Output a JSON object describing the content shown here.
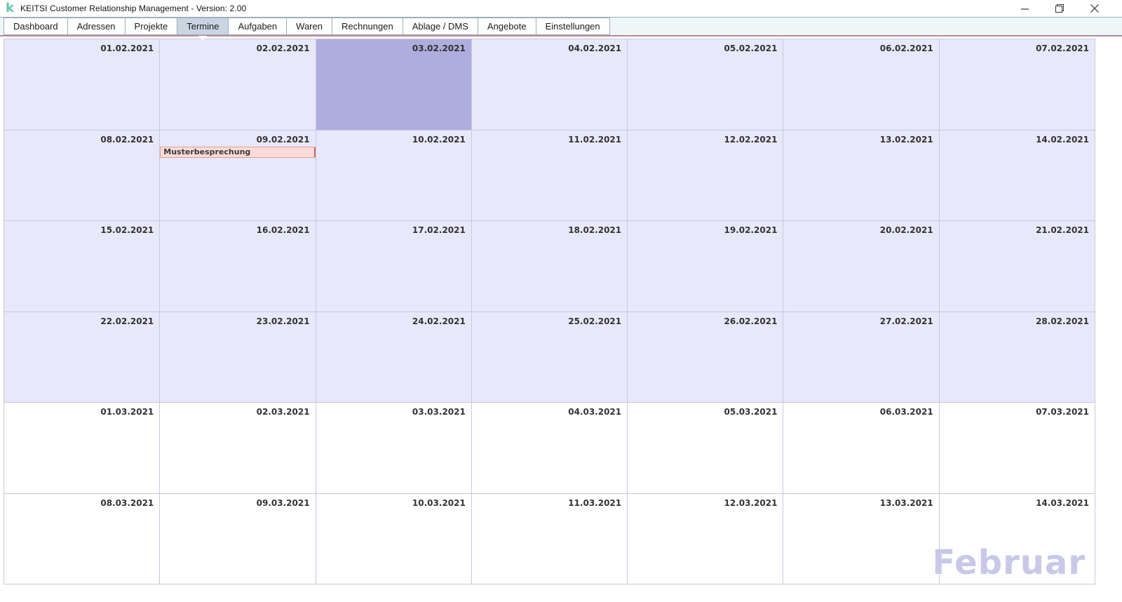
{
  "window": {
    "logo_letter": "k",
    "title": "KEITSI Customer Relationship Management - Version: 2.00",
    "controls": {
      "minimize_icon": "–",
      "restore_icon": "❐",
      "close_icon": "×"
    }
  },
  "tabs": [
    {
      "label": "Dashboard",
      "active": false
    },
    {
      "label": "Adressen",
      "active": false
    },
    {
      "label": "Projekte",
      "active": false
    },
    {
      "label": "Termine",
      "active": true
    },
    {
      "label": "Aufgaben",
      "active": false
    },
    {
      "label": "Waren",
      "active": false
    },
    {
      "label": "Rechnungen",
      "active": false
    },
    {
      "label": "Ablage / DMS",
      "active": false
    },
    {
      "label": "Angebote",
      "active": false
    },
    {
      "label": "Einstellungen",
      "active": false
    }
  ],
  "calendar": {
    "watermark": "Februar",
    "cells": [
      {
        "date": "01.02.2021",
        "month": "feb"
      },
      {
        "date": "02.02.2021",
        "month": "feb"
      },
      {
        "date": "03.02.2021",
        "month": "feb",
        "selected": true
      },
      {
        "date": "04.02.2021",
        "month": "feb"
      },
      {
        "date": "05.02.2021",
        "month": "feb"
      },
      {
        "date": "06.02.2021",
        "month": "feb"
      },
      {
        "date": "07.02.2021",
        "month": "feb"
      },
      {
        "date": "08.02.2021",
        "month": "feb"
      },
      {
        "date": "09.02.2021",
        "month": "feb",
        "events": [
          "Musterbesprechung"
        ]
      },
      {
        "date": "10.02.2021",
        "month": "feb"
      },
      {
        "date": "11.02.2021",
        "month": "feb"
      },
      {
        "date": "12.02.2021",
        "month": "feb"
      },
      {
        "date": "13.02.2021",
        "month": "feb"
      },
      {
        "date": "14.02.2021",
        "month": "feb"
      },
      {
        "date": "15.02.2021",
        "month": "feb"
      },
      {
        "date": "16.02.2021",
        "month": "feb"
      },
      {
        "date": "17.02.2021",
        "month": "feb"
      },
      {
        "date": "18.02.2021",
        "month": "feb"
      },
      {
        "date": "19.02.2021",
        "month": "feb"
      },
      {
        "date": "20.02.2021",
        "month": "feb"
      },
      {
        "date": "21.02.2021",
        "month": "feb"
      },
      {
        "date": "22.02.2021",
        "month": "feb"
      },
      {
        "date": "23.02.2021",
        "month": "feb"
      },
      {
        "date": "24.02.2021",
        "month": "feb"
      },
      {
        "date": "25.02.2021",
        "month": "feb"
      },
      {
        "date": "26.02.2021",
        "month": "feb"
      },
      {
        "date": "27.02.2021",
        "month": "feb"
      },
      {
        "date": "28.02.2021",
        "month": "feb"
      },
      {
        "date": "01.03.2021",
        "month": "mar"
      },
      {
        "date": "02.03.2021",
        "month": "mar"
      },
      {
        "date": "03.03.2021",
        "month": "mar"
      },
      {
        "date": "04.03.2021",
        "month": "mar"
      },
      {
        "date": "05.03.2021",
        "month": "mar"
      },
      {
        "date": "06.03.2021",
        "month": "mar"
      },
      {
        "date": "07.03.2021",
        "month": "mar"
      },
      {
        "date": "08.03.2021",
        "month": "mar"
      },
      {
        "date": "09.03.2021",
        "month": "mar"
      },
      {
        "date": "10.03.2021",
        "month": "mar"
      },
      {
        "date": "11.03.2021",
        "month": "mar"
      },
      {
        "date": "12.03.2021",
        "month": "mar"
      },
      {
        "date": "13.03.2021",
        "month": "mar"
      },
      {
        "date": "14.03.2021",
        "month": "mar"
      }
    ]
  },
  "colors": {
    "logo_teal": "#63C6AE",
    "active_tab_bg": "#C9D6E2",
    "tab_underline": "#B68A9A",
    "month_cell_bg": "#E8E8FA",
    "selected_cell_bg": "#AFACDE",
    "other_month_cell_bg": "#FFFFFF",
    "event_bg": "#FBDBD9",
    "event_border": "#DE9B99",
    "event_edge": "#C96A6A",
    "watermark_color": "#C9C8E8",
    "grid_border": "#C9C9DB",
    "tab_border": "#A3AEB8"
  }
}
